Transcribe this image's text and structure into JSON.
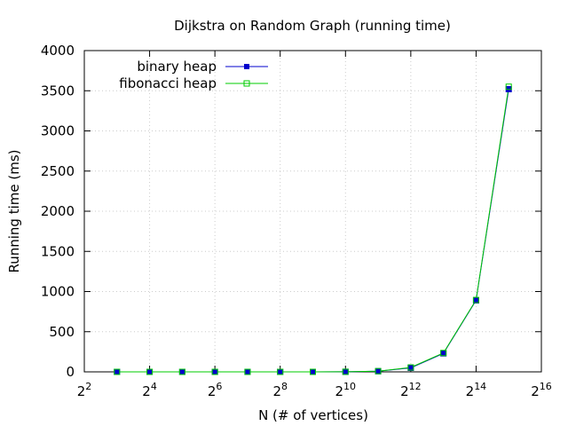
{
  "chart_data": {
    "type": "line",
    "title": "Dijkstra on Random Graph (running time)",
    "xlabel": "N (# of vertices)",
    "ylabel": "Running time (ms)",
    "x_scale": "log2",
    "x_ticks": [
      {
        "value": 4,
        "base": "2",
        "exp": "2"
      },
      {
        "value": 16,
        "base": "2",
        "exp": "4"
      },
      {
        "value": 64,
        "base": "2",
        "exp": "6"
      },
      {
        "value": 256,
        "base": "2",
        "exp": "8"
      },
      {
        "value": 1024,
        "base": "2",
        "exp": "10"
      },
      {
        "value": 4096,
        "base": "2",
        "exp": "12"
      },
      {
        "value": 16384,
        "base": "2",
        "exp": "14"
      },
      {
        "value": 65536,
        "base": "2",
        "exp": "16"
      }
    ],
    "xlim": [
      4,
      65536
    ],
    "y_ticks": [
      "0",
      "500",
      "1000",
      "1500",
      "2000",
      "2500",
      "3000",
      "3500",
      "4000"
    ],
    "ylim": [
      0,
      4000
    ],
    "grid": true,
    "legend_position": "top-left",
    "series": [
      {
        "name": "binary heap",
        "color": "#0000cc",
        "marker": "filled-square",
        "x": [
          8,
          16,
          32,
          64,
          128,
          256,
          512,
          1024,
          2048,
          4096,
          8192,
          16384,
          32768
        ],
        "y": [
          0,
          0,
          0,
          0,
          0,
          0,
          0,
          1,
          8,
          50,
          230,
          890,
          3520
        ]
      },
      {
        "name": "fibonacci heap",
        "color": "#00cc00",
        "marker": "open-square",
        "x": [
          8,
          16,
          32,
          64,
          128,
          256,
          512,
          1024,
          2048,
          4096,
          8192,
          16384,
          32768
        ],
        "y": [
          0,
          0,
          0,
          0,
          0,
          0,
          0,
          1,
          9,
          55,
          235,
          895,
          3550
        ]
      }
    ]
  }
}
